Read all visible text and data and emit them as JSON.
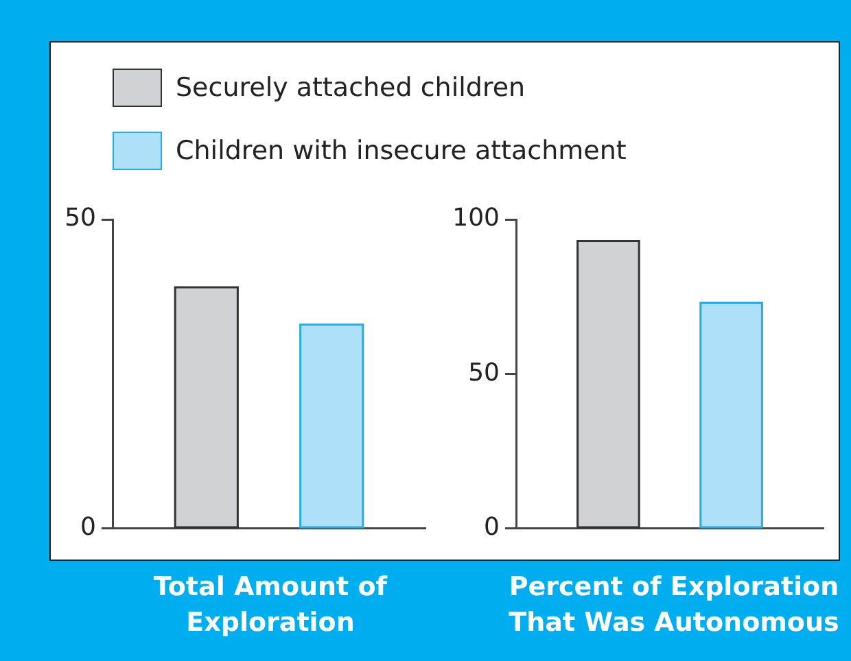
{
  "chart_data": [
    {
      "type": "bar",
      "categories": [
        null
      ],
      "xlabel": "Total Amount of Exploration",
      "ylim": [
        0,
        50
      ],
      "yticks": [
        0,
        50
      ],
      "legend": "top",
      "series": [
        {
          "name": "Securely attached children",
          "color": "#d1d2d4",
          "values": [
            39
          ]
        },
        {
          "name": "Children with insecure attachment",
          "color": "#aee0f9",
          "values": [
            33
          ]
        }
      ]
    },
    {
      "type": "bar",
      "categories": [
        null
      ],
      "xlabel": "Percent of Exploration That Was Autonomous",
      "ylim": [
        0,
        100
      ],
      "yticks": [
        0,
        50,
        100
      ],
      "series": [
        {
          "color": "#d1d2d4",
          "values": [
            93
          ]
        },
        {
          "color": "#aee0f9",
          "values": [
            73
          ]
        }
      ]
    }
  ]
}
